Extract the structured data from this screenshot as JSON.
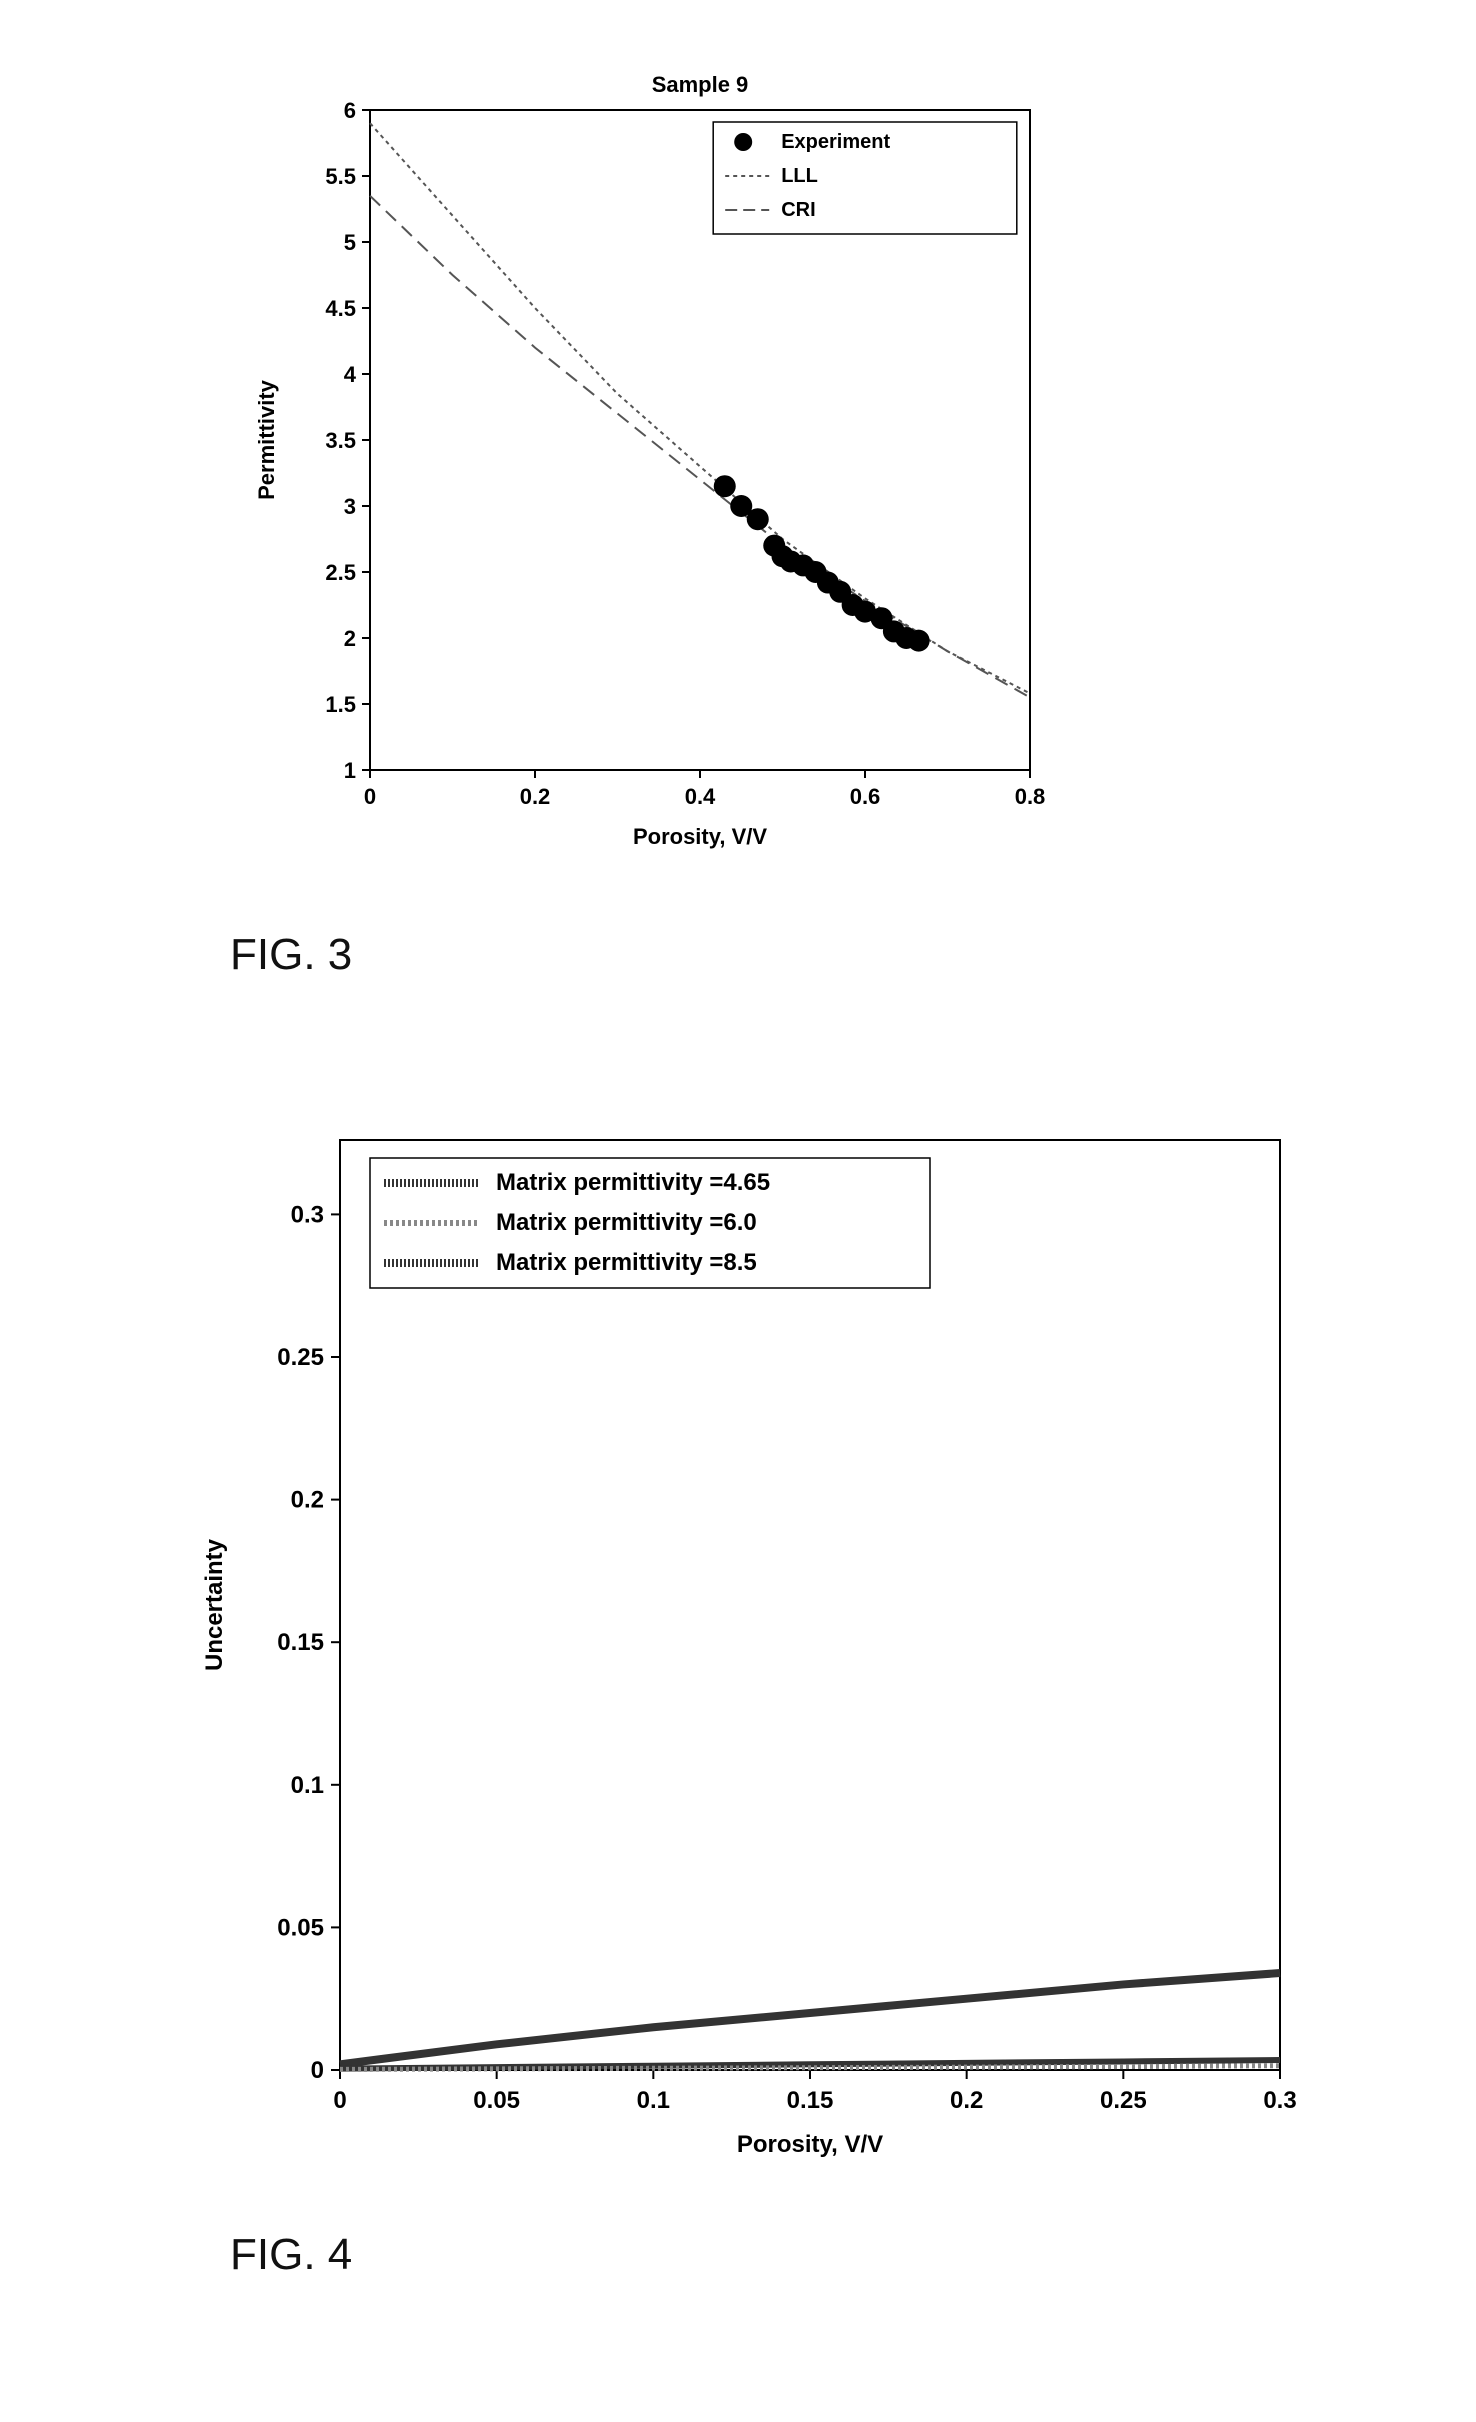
{
  "fig3": {
    "label": "FIG. 3",
    "title": "Sample 9",
    "title_fontsize": 22,
    "xlabel": "Porosity, V/V",
    "ylabel": "Permittivity",
    "axis_label_fontsize": 22,
    "tick_fontsize": 22,
    "xlim": [
      0,
      0.8
    ],
    "xticks": [
      0,
      0.2,
      0.4,
      0.6,
      0.8
    ],
    "ylim": [
      1,
      6
    ],
    "yticks": [
      1,
      1.5,
      2,
      2.5,
      3,
      3.5,
      4,
      4.5,
      5,
      5.5,
      6
    ],
    "plot_bg": "#ffffff",
    "axis_color": "#000000",
    "legend": {
      "box_stroke": "#000000",
      "items": [
        {
          "label": "Experiment",
          "type": "marker",
          "marker": "circle",
          "color": "#000000"
        },
        {
          "label": "LLL",
          "type": "line",
          "dash": "4 4",
          "color": "#555555"
        },
        {
          "label": "CRI",
          "type": "line",
          "dash": "12 6",
          "color": "#555555"
        }
      ]
    },
    "series": {
      "experiment": {
        "type": "scatter",
        "marker": "circle",
        "marker_size": 11,
        "color": "#000000",
        "x": [
          0.43,
          0.45,
          0.47,
          0.49,
          0.5,
          0.51,
          0.525,
          0.54,
          0.555,
          0.57,
          0.585,
          0.6,
          0.62,
          0.635,
          0.65,
          0.665
        ],
        "y": [
          3.15,
          3.0,
          2.9,
          2.7,
          2.62,
          2.58,
          2.55,
          2.5,
          2.42,
          2.35,
          2.25,
          2.2,
          2.15,
          2.05,
          2.0,
          1.98
        ]
      },
      "lll": {
        "type": "line",
        "color": "#555555",
        "dash": "4 4",
        "width": 2,
        "x": [
          0,
          0.1,
          0.2,
          0.3,
          0.4,
          0.5,
          0.6,
          0.7,
          0.8
        ],
        "y": [
          5.9,
          5.2,
          4.5,
          3.85,
          3.3,
          2.75,
          2.3,
          1.9,
          1.58
        ]
      },
      "cri": {
        "type": "line",
        "color": "#555555",
        "dash": "14 8",
        "width": 2,
        "x": [
          0,
          0.1,
          0.2,
          0.3,
          0.4,
          0.5,
          0.6,
          0.7,
          0.8
        ],
        "y": [
          5.35,
          4.75,
          4.2,
          3.7,
          3.2,
          2.7,
          2.28,
          1.9,
          1.55
        ]
      }
    }
  },
  "fig4": {
    "label": "FIG. 4",
    "xlabel": "Porosity, V/V",
    "ylabel": "Uncertainty",
    "axis_label_fontsize": 24,
    "tick_fontsize": 24,
    "xlim": [
      0,
      0.3
    ],
    "xticks": [
      0,
      0.05,
      0.1,
      0.15,
      0.2,
      0.25,
      0.3
    ],
    "ylim": [
      0,
      0.3
    ],
    "yticks_special": [
      0,
      0.05,
      0.1,
      0.15,
      0.2,
      0.25,
      0.3
    ],
    "y_gap_after_first": true,
    "plot_bg": "#ffffff",
    "axis_color": "#000000",
    "legend": {
      "box_stroke": "#000000",
      "items": [
        {
          "label": "Matrix permittivity =4.65",
          "pattern": "hatched",
          "color": "#333333"
        },
        {
          "label": "Matrix permittivity =6.0",
          "pattern": "dotted",
          "color": "#777777"
        },
        {
          "label": "Matrix permittivity =8.5",
          "pattern": "hatched",
          "color": "#333333"
        }
      ]
    },
    "series": {
      "s1": {
        "label": "Matrix permittivity =4.65",
        "color": "#333333",
        "width": 6,
        "x": [
          0,
          0.05,
          0.1,
          0.15,
          0.2,
          0.25,
          0.3
        ],
        "y": [
          0.0005,
          0.001,
          0.0015,
          0.002,
          0.0025,
          0.003,
          0.0035
        ]
      },
      "s2": {
        "label": "Matrix permittivity =6.0",
        "color": "#888888",
        "width": 5,
        "x": [
          0,
          0.05,
          0.1,
          0.15,
          0.2,
          0.25,
          0.3
        ],
        "y": [
          0.0002,
          0.0004,
          0.0006,
          0.0008,
          0.001,
          0.0012,
          0.0015
        ]
      },
      "s3": {
        "label": "Matrix permittivity =8.5",
        "color": "#333333",
        "width": 8,
        "x": [
          0,
          0.05,
          0.1,
          0.15,
          0.2,
          0.25,
          0.3
        ],
        "y": [
          0.002,
          0.009,
          0.015,
          0.02,
          0.025,
          0.03,
          0.034
        ]
      }
    }
  }
}
